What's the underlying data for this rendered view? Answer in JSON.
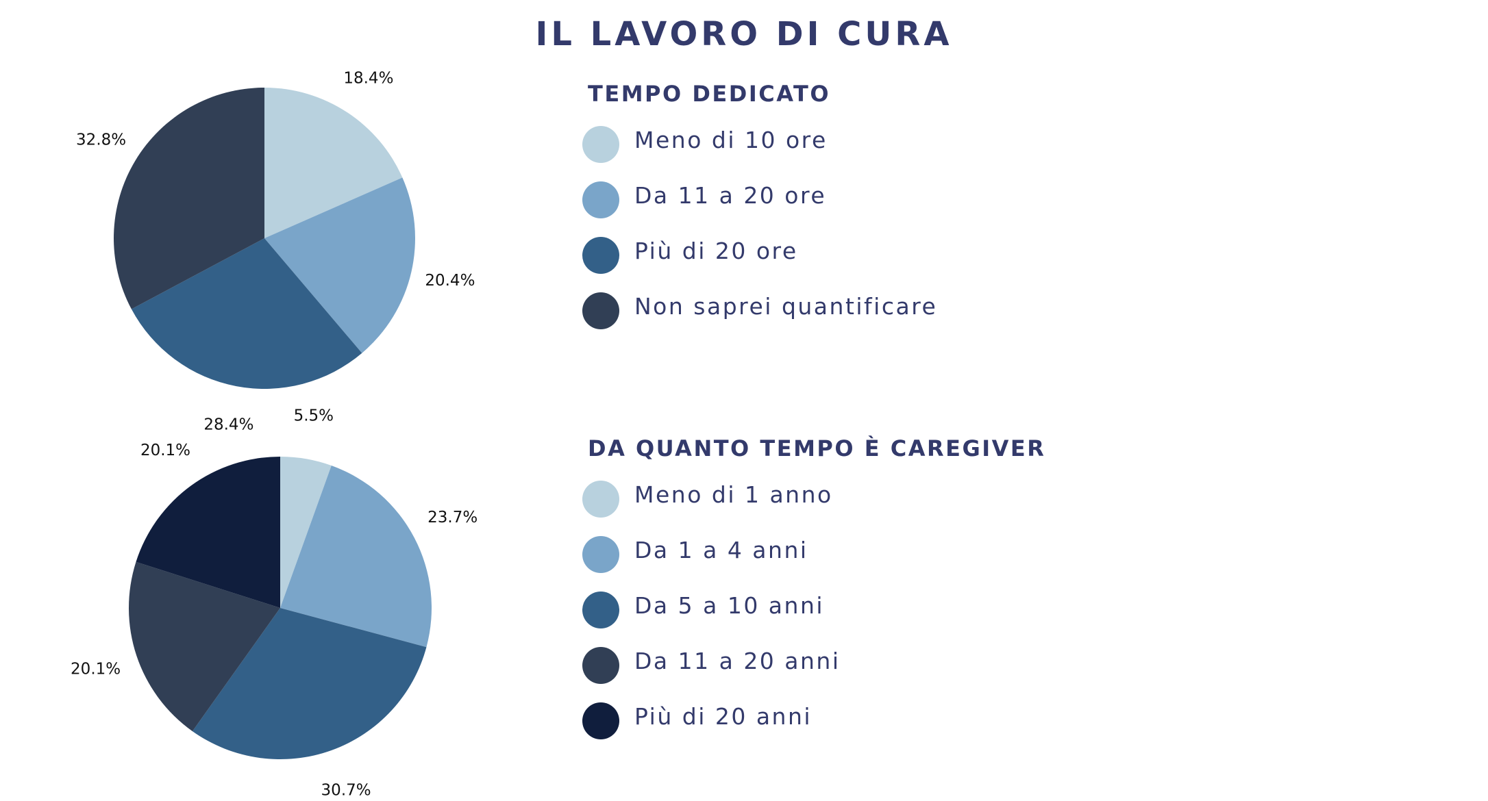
{
  "title": "IL LAVORO DI CURA",
  "chart_data": [
    {
      "type": "pie",
      "title": "TEMPO DEDICATO",
      "categories": [
        "Meno di 10 ore",
        "Da 11 a 20 ore",
        "Più di 20 ore",
        "Non saprei quantificare"
      ],
      "values": [
        18.4,
        20.4,
        28.4,
        32.8
      ],
      "labels": [
        "18.4%",
        "20.4%",
        "28.4%",
        "32.8%"
      ],
      "colors": [
        "#b8d1de",
        "#7aa5c9",
        "#336088",
        "#313f55"
      ],
      "legend": "right"
    },
    {
      "type": "pie",
      "title": "DA QUANTO TEMPO È CAREGIVER",
      "categories": [
        "Meno di 1 anno",
        "Da 1 a 4 anni",
        "Da 5 a 10 anni",
        "Da 11 a 20 anni",
        "Più di 20 anni"
      ],
      "values": [
        5.5,
        23.7,
        30.7,
        20.1,
        20.1
      ],
      "labels": [
        "5.5%",
        "23.7%",
        "30.7%",
        "20.1%",
        "20.1%"
      ],
      "colors": [
        "#b8d1de",
        "#7aa5c9",
        "#336088",
        "#313f55",
        "#101e3d"
      ],
      "legend": "right"
    }
  ]
}
